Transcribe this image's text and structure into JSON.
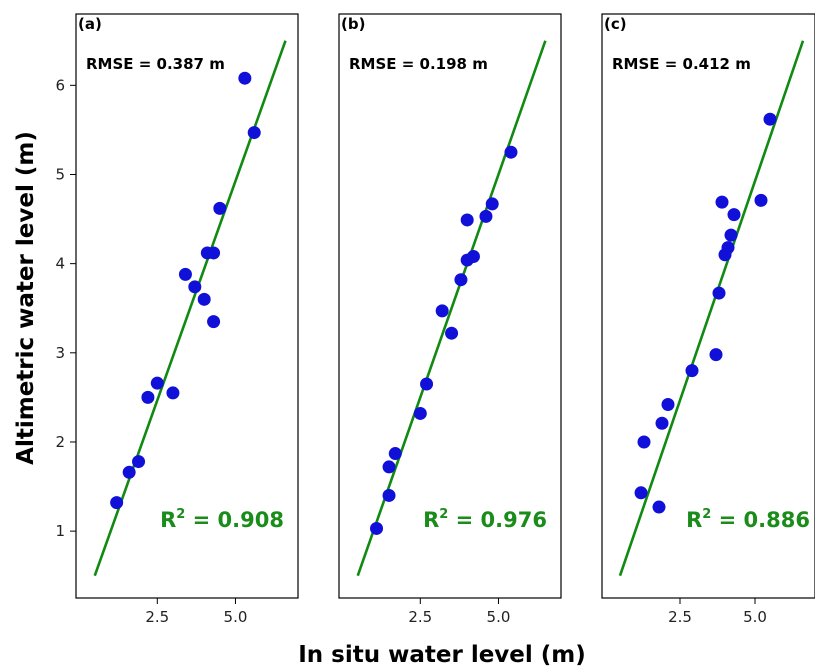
{
  "chart_data": {
    "type": "scatter",
    "xlabel": "In situ water level (m)",
    "ylabel": "Altimetric water level (m)",
    "ylim": [
      0.25,
      6.8
    ],
    "yticks": [
      1,
      2,
      3,
      4,
      5,
      6
    ],
    "xticks": [
      2.5,
      5.0
    ],
    "xtick_labels": [
      "2.5",
      "5.0"
    ],
    "line_color": "#118a11",
    "point_color": "#1010d8",
    "annotation_color": "#1a8c1a",
    "panels": [
      {
        "label": "(a)",
        "rmse_text": "RMSE = 0.387 m",
        "r2_prefix": "R",
        "r2_sup": "2",
        "r2_value": " = 0.908",
        "xlim": [
          -0.1,
          7.0
        ],
        "fit_line": [
          [
            0.5,
            0.5
          ],
          [
            6.6,
            6.5
          ]
        ],
        "points": [
          [
            1.2,
            1.32
          ],
          [
            1.6,
            1.66
          ],
          [
            1.9,
            1.78
          ],
          [
            2.2,
            2.5
          ],
          [
            2.5,
            2.66
          ],
          [
            3.0,
            2.55
          ],
          [
            3.4,
            3.88
          ],
          [
            3.7,
            3.74
          ],
          [
            4.0,
            3.6
          ],
          [
            4.1,
            4.12
          ],
          [
            4.3,
            4.12
          ],
          [
            4.3,
            3.35
          ],
          [
            4.5,
            4.62
          ],
          [
            5.3,
            6.08
          ],
          [
            5.6,
            5.47
          ]
        ]
      },
      {
        "label": "(b)",
        "rmse_text": "RMSE = 0.198 m",
        "r2_prefix": "R",
        "r2_sup": "2",
        "r2_value": " = 0.976",
        "xlim": [
          -0.1,
          7.0
        ],
        "fit_line": [
          [
            0.5,
            0.5
          ],
          [
            6.5,
            6.5
          ]
        ],
        "points": [
          [
            1.1,
            1.03
          ],
          [
            1.5,
            1.4
          ],
          [
            1.5,
            1.72
          ],
          [
            1.7,
            1.87
          ],
          [
            2.5,
            2.32
          ],
          [
            2.7,
            2.65
          ],
          [
            3.2,
            3.47
          ],
          [
            3.5,
            3.22
          ],
          [
            3.8,
            3.82
          ],
          [
            4.0,
            4.04
          ],
          [
            4.0,
            4.49
          ],
          [
            4.2,
            4.08
          ],
          [
            4.6,
            4.53
          ],
          [
            4.8,
            4.67
          ],
          [
            5.4,
            5.25
          ]
        ]
      },
      {
        "label": "(c)",
        "rmse_text": "RMSE = 0.412 m",
        "r2_prefix": "R",
        "r2_sup": "2",
        "r2_value": " = 0.886",
        "xlim": [
          -0.1,
          7.0
        ],
        "fit_line": [
          [
            0.5,
            0.5
          ],
          [
            6.6,
            6.5
          ]
        ],
        "points": [
          [
            1.2,
            1.43
          ],
          [
            1.3,
            2.0
          ],
          [
            1.8,
            1.27
          ],
          [
            1.9,
            2.21
          ],
          [
            2.1,
            2.42
          ],
          [
            2.9,
            2.8
          ],
          [
            3.7,
            2.98
          ],
          [
            3.8,
            3.67
          ],
          [
            3.9,
            4.69
          ],
          [
            4.0,
            4.1
          ],
          [
            4.1,
            4.18
          ],
          [
            4.2,
            4.32
          ],
          [
            4.3,
            4.55
          ],
          [
            5.2,
            4.71
          ],
          [
            5.5,
            5.62
          ]
        ]
      }
    ]
  }
}
